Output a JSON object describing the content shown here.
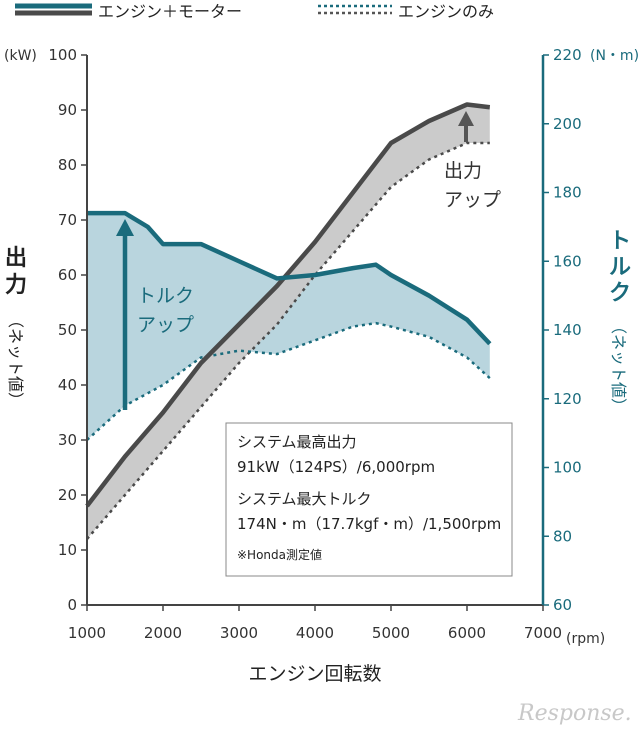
{
  "legend": {
    "motor_label": "エンジン＋モーター",
    "engine_label": "エンジンのみ"
  },
  "y_left": {
    "unit": "(kW)",
    "title": "出力",
    "subtitle": "（ネット値）",
    "ticks": [
      0,
      10,
      20,
      30,
      40,
      50,
      60,
      70,
      80,
      90,
      100
    ]
  },
  "y_right": {
    "unit": "(N・m)",
    "title": "トルク",
    "subtitle": "（ネット値）",
    "ticks": [
      60,
      80,
      100,
      120,
      140,
      160,
      180,
      200,
      220
    ]
  },
  "x_axis": {
    "title": "エンジン回転数",
    "unit": "(rpm)",
    "ticks": [
      1000,
      2000,
      3000,
      4000,
      5000,
      6000,
      7000
    ]
  },
  "annotations": {
    "torque_up_1": "トルク",
    "torque_up_2": "アップ",
    "power_up_1": "出力",
    "power_up_2": "アップ"
  },
  "note": {
    "line1": "システム最高出力",
    "line2": "91kW（124PS）/6,000rpm",
    "line3": "システム最大トルク",
    "line4": "174N・m（17.7kgf・m）/1,500rpm",
    "line5": "※Honda測定値"
  },
  "watermark": "Response.",
  "colors": {
    "power": "#4a4a4a",
    "power_fill": "#c8c8c8",
    "torque": "#1a6b7c",
    "torque_fill": "#b5d3dc"
  },
  "chart_data": {
    "type": "line",
    "xlim": [
      1000,
      7000
    ],
    "ylim_left": [
      0,
      100
    ],
    "ylim_right": [
      60,
      220
    ],
    "series": [
      {
        "name": "エンジン＋モーター",
        "quantity": "出力",
        "axis": "left",
        "x": [
          1000,
          1500,
          2000,
          2500,
          3000,
          3500,
          4000,
          4500,
          5000,
          5500,
          6000,
          6300
        ],
        "y": [
          18,
          27,
          35,
          44,
          51,
          58,
          66,
          75,
          84,
          88,
          91,
          90.5
        ]
      },
      {
        "name": "エンジンのみ",
        "quantity": "出力",
        "axis": "left",
        "x": [
          1000,
          1500,
          2000,
          2500,
          3000,
          3500,
          4000,
          4500,
          5000,
          5500,
          6000,
          6300
        ],
        "y": [
          12,
          20,
          28,
          36,
          44,
          51,
          60,
          68,
          76,
          81,
          84,
          84
        ]
      },
      {
        "name": "エンジン＋モーター",
        "quantity": "トルク",
        "axis": "right",
        "x": [
          1000,
          1500,
          1800,
          2000,
          2500,
          3000,
          3500,
          4000,
          4500,
          4800,
          5000,
          5500,
          6000,
          6300
        ],
        "y": [
          174,
          174,
          170,
          165,
          165,
          160,
          155,
          156,
          158,
          159,
          156,
          150,
          143,
          136
        ]
      },
      {
        "name": "エンジンのみ",
        "quantity": "トルク",
        "axis": "right",
        "x": [
          1000,
          1500,
          2000,
          2500,
          3000,
          3500,
          4000,
          4500,
          4800,
          5000,
          5500,
          6000,
          6300
        ],
        "y": [
          108,
          118,
          124,
          132,
          134,
          133,
          137,
          141,
          142,
          141,
          138,
          132,
          126
        ]
      }
    ]
  }
}
